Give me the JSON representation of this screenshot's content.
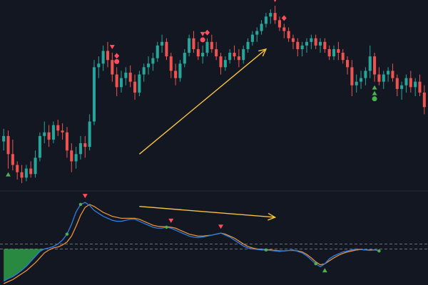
{
  "colors": {
    "background": "#131722",
    "up": "#26a69a",
    "down": "#ef5350",
    "signal_sell": "#ff4d5e",
    "signal_buy": "#4caf50",
    "trend_arrow": "#f5c242",
    "osc_fast": "#2f7de1",
    "osc_slow": "#e8923a",
    "osc_fill": "#2e9e45",
    "level_line": "#8a8f99",
    "divider": "#2a2e39"
  },
  "chart_data": [
    {
      "type": "candlestick",
      "panel": "price",
      "title": "",
      "xlabel": "",
      "ylabel": "",
      "grid": false,
      "ylim": [
        0,
        100
      ],
      "candles": [
        [
          25,
          32,
          20,
          28
        ],
        [
          28,
          31,
          10,
          18
        ],
        [
          18,
          26,
          9,
          12
        ],
        [
          12,
          14,
          4,
          8
        ],
        [
          8,
          12,
          2,
          5
        ],
        [
          5,
          12,
          3,
          10
        ],
        [
          10,
          14,
          5,
          7
        ],
        [
          7,
          20,
          5,
          16
        ],
        [
          16,
          30,
          14,
          28
        ],
        [
          28,
          36,
          24,
          30
        ],
        [
          30,
          34,
          22,
          26
        ],
        [
          26,
          36,
          24,
          34
        ],
        [
          34,
          37,
          28,
          31
        ],
        [
          31,
          35,
          26,
          30
        ],
        [
          30,
          33,
          16,
          20
        ],
        [
          20,
          24,
          8,
          14
        ],
        [
          14,
          22,
          10,
          18
        ],
        [
          18,
          28,
          15,
          24
        ],
        [
          24,
          28,
          16,
          22
        ],
        [
          22,
          40,
          20,
          36
        ],
        [
          36,
          70,
          34,
          66
        ],
        [
          66,
          72,
          60,
          68
        ],
        [
          68,
          78,
          64,
          75
        ],
        [
          75,
          80,
          66,
          70
        ],
        [
          70,
          74,
          58,
          62
        ],
        [
          62,
          66,
          50,
          55
        ],
        [
          55,
          64,
          52,
          60
        ],
        [
          60,
          66,
          56,
          63
        ],
        [
          63,
          67,
          55,
          58
        ],
        [
          58,
          62,
          48,
          52
        ],
        [
          52,
          64,
          50,
          62
        ],
        [
          62,
          68,
          58,
          66
        ],
        [
          66,
          72,
          62,
          68
        ],
        [
          68,
          74,
          64,
          71
        ],
        [
          71,
          80,
          69,
          78
        ],
        [
          78,
          84,
          74,
          80
        ],
        [
          80,
          82,
          70,
          72
        ],
        [
          72,
          74,
          60,
          64
        ],
        [
          64,
          68,
          56,
          60
        ],
        [
          60,
          70,
          58,
          68
        ],
        [
          68,
          76,
          66,
          74
        ],
        [
          74,
          84,
          72,
          82
        ],
        [
          82,
          86,
          74,
          76
        ],
        [
          76,
          80,
          70,
          72
        ],
        [
          72,
          78,
          68,
          74
        ],
        [
          74,
          82,
          72,
          80
        ],
        [
          80,
          84,
          74,
          76
        ],
        [
          76,
          80,
          70,
          72
        ],
        [
          72,
          74,
          62,
          66
        ],
        [
          66,
          72,
          64,
          70
        ],
        [
          70,
          76,
          68,
          74
        ],
        [
          74,
          78,
          70,
          72
        ],
        [
          72,
          76,
          66,
          70
        ],
        [
          70,
          78,
          68,
          76
        ],
        [
          76,
          82,
          74,
          80
        ],
        [
          80,
          86,
          78,
          84
        ],
        [
          84,
          88,
          80,
          86
        ],
        [
          86,
          92,
          84,
          90
        ],
        [
          90,
          96,
          88,
          94
        ],
        [
          94,
          98,
          90,
          96
        ],
        [
          96,
          100,
          90,
          92
        ],
        [
          92,
          94,
          86,
          88
        ],
        [
          88,
          90,
          82,
          86
        ],
        [
          86,
          88,
          80,
          82
        ],
        [
          82,
          84,
          76,
          80
        ],
        [
          80,
          82,
          72,
          76
        ],
        [
          76,
          80,
          72,
          78
        ],
        [
          78,
          82,
          74,
          80
        ],
        [
          80,
          84,
          76,
          82
        ],
        [
          82,
          84,
          76,
          78
        ],
        [
          78,
          82,
          74,
          80
        ],
        [
          80,
          82,
          74,
          76
        ],
        [
          76,
          78,
          70,
          72
        ],
        [
          72,
          78,
          70,
          76
        ],
        [
          76,
          80,
          70,
          74
        ],
        [
          74,
          76,
          68,
          70
        ],
        [
          70,
          72,
          62,
          66
        ],
        [
          66,
          70,
          50,
          56
        ],
        [
          56,
          62,
          52,
          58
        ],
        [
          58,
          64,
          54,
          60
        ],
        [
          60,
          66,
          56,
          64
        ],
        [
          64,
          78,
          60,
          72
        ],
        [
          72,
          74,
          58,
          62
        ],
        [
          62,
          66,
          56,
          58
        ],
        [
          58,
          64,
          54,
          62
        ],
        [
          62,
          66,
          58,
          64
        ],
        [
          64,
          68,
          58,
          60
        ],
        [
          60,
          62,
          50,
          54
        ],
        [
          54,
          58,
          48,
          56
        ],
        [
          56,
          62,
          52,
          60
        ],
        [
          60,
          64,
          52,
          55
        ],
        [
          55,
          60,
          50,
          58
        ],
        [
          58,
          62,
          50,
          52
        ],
        [
          52,
          56,
          40,
          44
        ]
      ],
      "signals": [
        {
          "i": 1,
          "kind": "buy-triangle"
        },
        {
          "i": 24,
          "kind": "sell-triangle"
        },
        {
          "i": 25,
          "kind": "sell-dot"
        },
        {
          "i": 25,
          "kind": "sell-diamond"
        },
        {
          "i": 44,
          "kind": "sell-dot"
        },
        {
          "i": 44,
          "kind": "sell-triangle"
        },
        {
          "i": 45,
          "kind": "sell-diamond"
        },
        {
          "i": 60,
          "kind": "sell-triangle"
        },
        {
          "i": 62,
          "kind": "sell-diamond"
        },
        {
          "i": 82,
          "kind": "buy-triangle"
        },
        {
          "i": 82,
          "kind": "buy-triangle"
        },
        {
          "i": 82,
          "kind": "buy-dot"
        }
      ],
      "annotations": [
        {
          "kind": "trend-arrow",
          "from": [
            30,
            18
          ],
          "to": [
            58,
            76
          ]
        }
      ]
    },
    {
      "type": "line",
      "panel": "oscillator",
      "title": "",
      "xlabel": "",
      "ylabel": "",
      "grid": false,
      "ylim": [
        -60,
        110
      ],
      "levels": [
        20,
        10
      ],
      "series": [
        {
          "role": "fast",
          "values": [
            -55,
            -50,
            -46,
            -40,
            -33,
            -25,
            -15,
            -5,
            5,
            10,
            12,
            15,
            20,
            28,
            40,
            60,
            85,
            100,
            104,
            98,
            88,
            82,
            76,
            72,
            68,
            66,
            66,
            68,
            70,
            70,
            66,
            62,
            58,
            54,
            52,
            52,
            54,
            52,
            48,
            44,
            40,
            36,
            34,
            33,
            34,
            36,
            38,
            40,
            42,
            38,
            34,
            28,
            22,
            16,
            12,
            10,
            9,
            8,
            8,
            7,
            6,
            5,
            6,
            7,
            8,
            5,
            2,
            -4,
            -12,
            -20,
            -26,
            -20,
            -10,
            -4,
            0,
            4,
            6,
            8,
            10,
            9,
            8,
            7,
            8,
            6
          ]
        },
        {
          "role": "slow",
          "values": [
            -60,
            -56,
            -52,
            -46,
            -40,
            -34,
            -26,
            -18,
            -8,
            2,
            8,
            12,
            14,
            18,
            24,
            36,
            56,
            78,
            94,
            100,
            96,
            90,
            84,
            80,
            76,
            74,
            72,
            72,
            72,
            72,
            70,
            66,
            62,
            58,
            56,
            55,
            55,
            54,
            52,
            48,
            44,
            40,
            38,
            36,
            36,
            37,
            38,
            40,
            42,
            40,
            36,
            32,
            26,
            20,
            15,
            12,
            10,
            9,
            9,
            8,
            7,
            6,
            6,
            7,
            7,
            6,
            4,
            -1,
            -8,
            -16,
            -22,
            -20,
            -14,
            -8,
            -3,
            1,
            4,
            6,
            8,
            9,
            8,
            8,
            8,
            7
          ]
        }
      ],
      "signals": [
        {
          "i": 14,
          "kind": "buy-dot"
        },
        {
          "i": 17,
          "kind": "buy-dot"
        },
        {
          "i": 18,
          "kind": "sell-triangle"
        },
        {
          "i": 36,
          "kind": "buy-dot"
        },
        {
          "i": 37,
          "kind": "sell-triangle"
        },
        {
          "i": 48,
          "kind": "sell-triangle"
        },
        {
          "i": 58,
          "kind": "buy-dot"
        },
        {
          "i": 69,
          "kind": "buy-dot"
        },
        {
          "i": 71,
          "kind": "buy-triangle"
        },
        {
          "i": 83,
          "kind": "buy-dot"
        }
      ],
      "annotations": [
        {
          "kind": "trend-arrow",
          "from": [
            30,
            96
          ],
          "to": [
            60,
            74
          ]
        }
      ]
    }
  ]
}
